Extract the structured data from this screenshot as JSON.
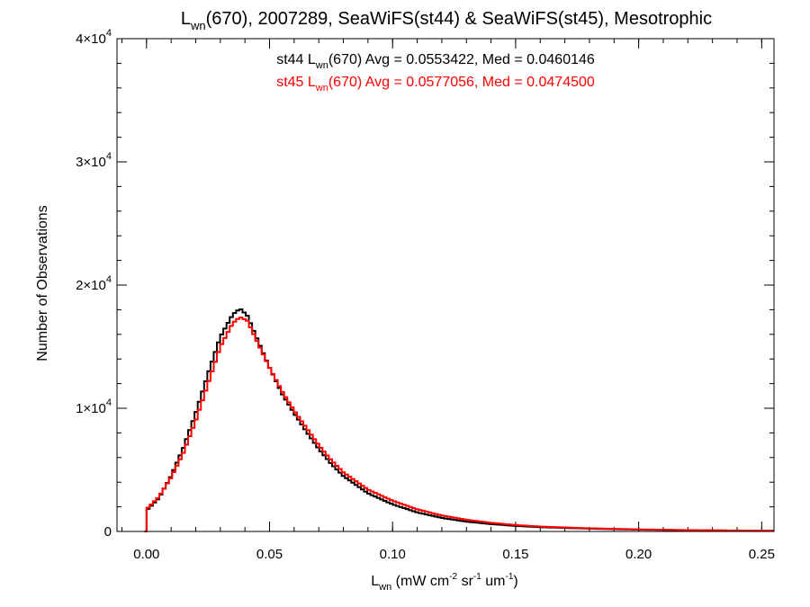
{
  "chart_data": {
    "type": "line",
    "title": {
      "main": "L",
      "sub": "wn",
      "rest": "(670), 2007289, SeaWiFS(st44) & SeaWiFS(st45), Mesotrophic"
    },
    "xlabel": {
      "main": "L",
      "sub": "wn",
      "p1": " (mW cm",
      "sup1": "-2",
      "p2": " sr",
      "sup2": "-1",
      "p3": " um",
      "sup3": "-1",
      "p4": ")"
    },
    "ylabel": "Number of Observations",
    "xlim": [
      -0.012,
      0.255
    ],
    "ylim": [
      0,
      40000
    ],
    "x_ticks": [
      {
        "value": 0.0,
        "label": "0.00"
      },
      {
        "value": 0.05,
        "label": "0.05"
      },
      {
        "value": 0.1,
        "label": "0.10"
      },
      {
        "value": 0.15,
        "label": "0.15"
      },
      {
        "value": 0.2,
        "label": "0.20"
      },
      {
        "value": 0.25,
        "label": "0.25"
      }
    ],
    "x_minor_step": 0.01,
    "y_ticks": [
      {
        "value": 0,
        "mantissa": "0",
        "exp": ""
      },
      {
        "value": 10000,
        "mantissa": "1×10",
        "exp": "4"
      },
      {
        "value": 20000,
        "mantissa": "2×10",
        "exp": "4"
      },
      {
        "value": 30000,
        "mantissa": "3×10",
        "exp": "4"
      },
      {
        "value": 40000,
        "mantissa": "4×10",
        "exp": "4"
      }
    ],
    "y_minor_step": 2000,
    "grid": false,
    "bin_width": 0.0013,
    "series": [
      {
        "name_prefix": "st44 L",
        "name_sub": "wn",
        "name_suffix": "(670) Avg = 0.0553422, Med = 0.0460146",
        "color": "#000000",
        "x": [
          0.0,
          0.005,
          0.01,
          0.015,
          0.02,
          0.025,
          0.03,
          0.035,
          0.038,
          0.041,
          0.045,
          0.05,
          0.055,
          0.06,
          0.065,
          0.07,
          0.075,
          0.08,
          0.09,
          0.1,
          0.11,
          0.12,
          0.13,
          0.14,
          0.15,
          0.16,
          0.18,
          0.2,
          0.22,
          0.24,
          0.255
        ],
        "y": [
          1700,
          2700,
          4500,
          6800,
          9600,
          12800,
          15800,
          17600,
          18100,
          17500,
          15600,
          13300,
          11200,
          9600,
          8100,
          6700,
          5500,
          4500,
          3100,
          2200,
          1550,
          1100,
          800,
          600,
          450,
          350,
          230,
          150,
          100,
          70,
          60
        ]
      },
      {
        "name_prefix": "st45 L",
        "name_sub": "wn",
        "name_suffix": "(670) Avg = 0.0577056, Med = 0.0474500",
        "color": "#ff0000",
        "x": [
          0.0,
          0.005,
          0.01,
          0.015,
          0.02,
          0.025,
          0.03,
          0.035,
          0.038,
          0.041,
          0.045,
          0.05,
          0.055,
          0.06,
          0.065,
          0.07,
          0.075,
          0.08,
          0.09,
          0.1,
          0.11,
          0.12,
          0.13,
          0.14,
          0.15,
          0.16,
          0.18,
          0.2,
          0.22,
          0.24,
          0.255
        ],
        "y": [
          1800,
          2800,
          4400,
          6400,
          9000,
          12000,
          15000,
          16900,
          17400,
          17100,
          15400,
          13300,
          11400,
          9800,
          8400,
          7000,
          5800,
          4800,
          3400,
          2500,
          1800,
          1300,
          950,
          700,
          520,
          400,
          260,
          170,
          110,
          80,
          60
        ]
      }
    ]
  }
}
